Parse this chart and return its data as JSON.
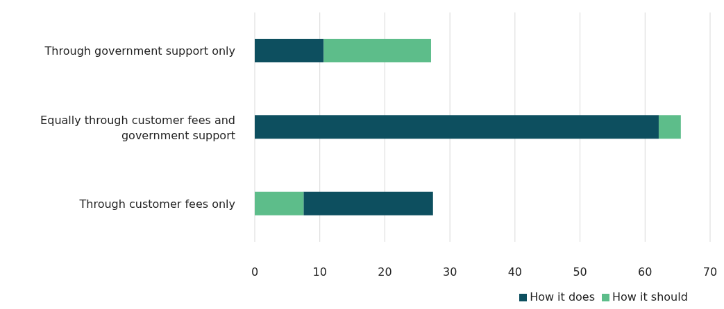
{
  "chart_data": {
    "type": "bar",
    "orientation": "horizontal",
    "categories": [
      "Through government support only",
      "Equally through customer fees and government support",
      "Through customer fees only"
    ],
    "series": [
      {
        "name": "How it does",
        "color": "#0d4f5f",
        "values": [
          10.6,
          62.1,
          19.9
        ],
        "base": [
          0,
          0,
          7.5
        ]
      },
      {
        "name": "How it should",
        "color": "#5dbd8a",
        "values": [
          16.5,
          3.4,
          7.5
        ],
        "base": [
          10.6,
          62.1,
          0
        ]
      }
    ],
    "xlim": [
      0,
      70
    ],
    "xticks": [
      0,
      10,
      20,
      30,
      40,
      50,
      60,
      70
    ],
    "grid": "x",
    "legend": "bottom"
  }
}
